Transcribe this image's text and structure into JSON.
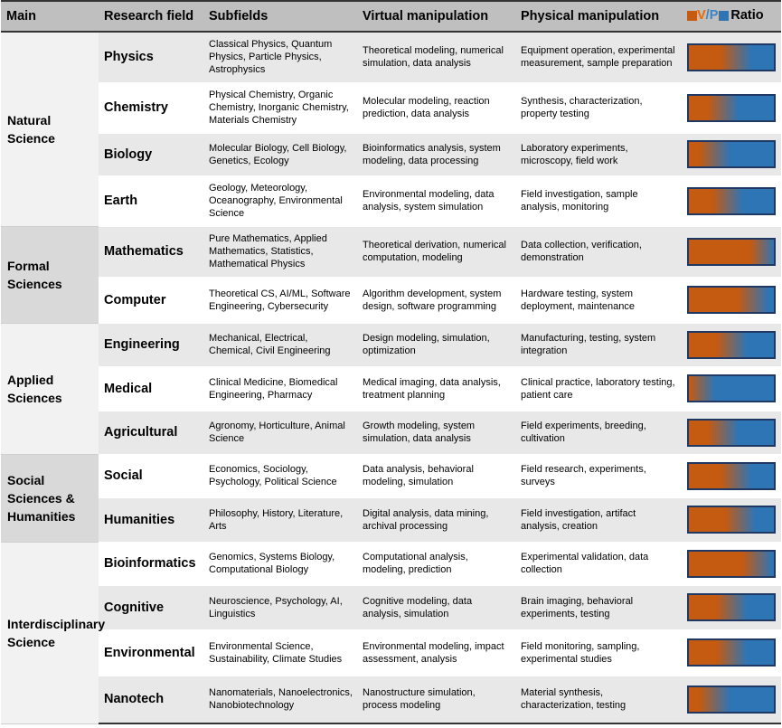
{
  "colors": {
    "virtual": "#c55a11",
    "physical": "#2e75b6",
    "bar_border": "#1f3864",
    "header_bg": "#bfbfbf"
  },
  "header": {
    "main": "Main",
    "field": "Research field",
    "subfields": "Subfields",
    "virtual": "Virtual manipulation",
    "physical": "Physical manipulation",
    "ratio_v": "V",
    "ratio_slash": "/",
    "ratio_p": "P",
    "ratio_label": "Ratio"
  },
  "groups": [
    {
      "name": "Natural Science",
      "bg": "#f2f2f2",
      "rows": [
        {
          "field": "Physics",
          "subfields": "Classical Physics, Quantum Physics, Particle Physics, Astrophysics",
          "virtual": "Theoretical modeling, numerical simulation, data analysis",
          "physical": "Equipment operation, experimental measurement, sample preparation",
          "v": 0.55,
          "h": 56
        },
        {
          "field": "Chemistry",
          "subfields": "Physical Chemistry, Organic Chemistry, Inorganic Chemistry, Materials Chemistry",
          "virtual": "Molecular modeling, reaction prediction, data analysis",
          "physical": "Synthesis, characterization, property testing",
          "v": 0.4,
          "h": 56
        },
        {
          "field": "Biology",
          "subfields": "Molecular Biology, Cell Biology, Genetics, Ecology",
          "virtual": "Bioinformatics analysis, system modeling, data processing",
          "physical": "Laboratory experiments, microscopy, field work",
          "v": 0.3,
          "h": 47
        },
        {
          "field": "Earth",
          "subfields": "Geology, Meteorology, Oceanography, Environmental Science",
          "virtual": "Environmental modeling, data analysis, system simulation",
          "physical": "Field investigation, sample analysis, monitoring",
          "v": 0.45,
          "h": 56
        }
      ]
    },
    {
      "name": "Formal Sciences",
      "bg": "#d9d9d9",
      "rows": [
        {
          "field": "Mathematics",
          "subfields": "Pure Mathematics, Applied Mathematics, Statistics, Mathematical Physics",
          "virtual": "Theoretical derivation, numerical computation, modeling",
          "physical": "Data collection, verification, demonstration",
          "v": 0.9,
          "h": 56
        },
        {
          "field": "Computer",
          "subfields": "Theoretical CS, AI/ML, Software Engineering, Cybersecurity",
          "virtual": "Algorithm development, system design, software programming",
          "physical": "Hardware testing, system deployment, maintenance",
          "v": 0.75,
          "h": 51
        }
      ]
    },
    {
      "name": "Applied Sciences",
      "bg": "#f2f2f2",
      "rows": [
        {
          "field": "Engineering",
          "subfields": "Mechanical, Electrical, Chemical, Civil Engineering",
          "virtual": "Design modeling, simulation, optimization",
          "physical": "Manufacturing, testing, system integration",
          "v": 0.5,
          "h": 48
        },
        {
          "field": "Medical",
          "subfields": "Clinical Medicine, Biomedical Engineering, Pharmacy",
          "virtual": "Medical imaging, data analysis, treatment planning",
          "physical": "Clinical practice, laboratory testing, patient care",
          "v": 0.12,
          "h": 49
        },
        {
          "field": "Agricultural",
          "subfields": "Agronomy, Horticulture, Animal Science",
          "virtual": "Growth modeling, system simulation, data analysis",
          "physical": "Field experiments, breeding, cultivation",
          "v": 0.4,
          "h": 48
        }
      ]
    },
    {
      "name": "Social Sciences & Humanities",
      "bg": "#d9d9d9",
      "rows": [
        {
          "field": "Social",
          "subfields": "Economics, Sociology, Psychology, Political Science",
          "virtual": "Data analysis, behavioral modeling, simulation",
          "physical": "Field research, experiments, surveys",
          "v": 0.55,
          "h": 48
        },
        {
          "field": "Humanities",
          "subfields": "Philosophy, History, Literature, Arts",
          "virtual": "Digital analysis, data mining, archival processing",
          "physical": "Field investigation, artifact analysis, creation",
          "v": 0.6,
          "h": 49
        }
      ]
    },
    {
      "name": "Interdisciplinary Science",
      "bg": "#f2f2f2",
      "rows": [
        {
          "field": "Bioinformatics",
          "subfields": "Genomics, Systems Biology, Computational Biology",
          "virtual": "Computational analysis, modeling, prediction",
          "physical": "Experimental validation, data collection",
          "v": 0.8,
          "h": 48
        },
        {
          "field": "Cognitive",
          "subfields": "Neuroscience, Psychology, AI, Linguistics",
          "virtual": "Cognitive modeling, data analysis, simulation",
          "physical": "Brain imaging, behavioral experiments, testing",
          "v": 0.5,
          "h": 49
        },
        {
          "field": "Environmental",
          "subfields": "Environmental Science, Sustainability, Climate Studies",
          "virtual": "Environmental modeling, impact assessment, analysis",
          "physical": "Field monitoring, sampling, experimental studies",
          "v": 0.5,
          "h": 51
        },
        {
          "field": "Nanotech",
          "subfields": "Nanomaterials, Nanoelectronics, Nanobiotechnology",
          "virtual": "Nanostructure simulation, process modeling",
          "physical": "Material synthesis, characterization, testing",
          "v": 0.3,
          "h": 53
        }
      ]
    }
  ]
}
